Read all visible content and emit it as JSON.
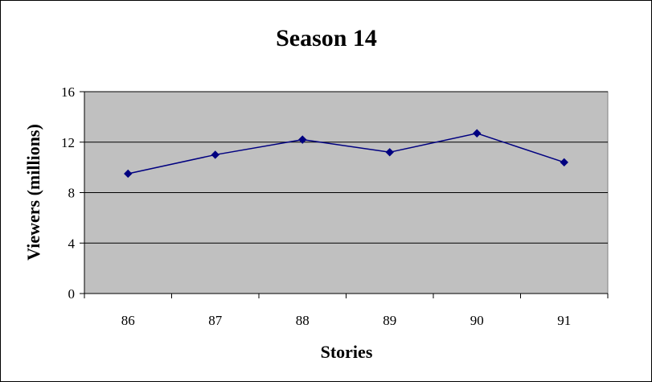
{
  "chart_data": {
    "type": "line",
    "title": "Season 14",
    "xlabel": "Stories",
    "ylabel": "Viewers (millions)",
    "categories": [
      "86",
      "87",
      "88",
      "89",
      "90",
      "91"
    ],
    "series": [
      {
        "values": [
          9.5,
          11.0,
          12.2,
          11.2,
          12.7,
          10.4
        ]
      }
    ],
    "ylim": [
      0,
      16
    ],
    "yticks": [
      "0",
      "4",
      "8",
      "12",
      "16"
    ],
    "grid": true,
    "legend": "none",
    "colors": {
      "plot_background": "#c0c0c0",
      "line": "#000080",
      "gridline": "#000000"
    }
  }
}
